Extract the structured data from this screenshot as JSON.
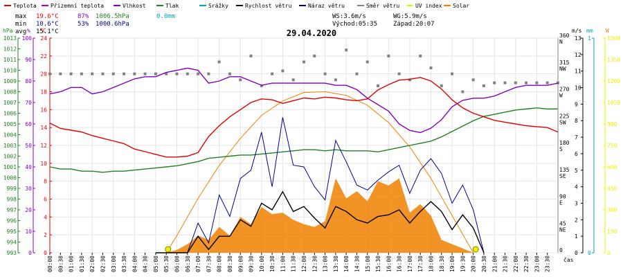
{
  "legend": [
    {
      "label": "Teplota",
      "color": "#e00000"
    },
    {
      "label": "Přízemní teplota",
      "color": "#b000b0"
    },
    {
      "label": "Vlhkost",
      "color": "#8000c0"
    },
    {
      "label": "Tlak",
      "color": "#208020"
    },
    {
      "label": "Srážky",
      "color": "#00a0c0"
    },
    {
      "label": "Rychlost větru",
      "color": "#000000"
    },
    {
      "label": "Náraz větru",
      "color": "#000090"
    },
    {
      "label": "Směr větru",
      "color": "#808080"
    },
    {
      "label": "UV index",
      "color": "#f0f000"
    },
    {
      "label": "Solar",
      "color": "#f08000"
    }
  ],
  "stats": {
    "max_label": "max",
    "max_temp": "19.6°C",
    "max_hum": "87%",
    "max_press": "1006.5hPa",
    "max_rain": "0.0mm",
    "min_label": "min",
    "min_temp": "10.6°C",
    "min_hum": "53%",
    "min_press": "1000.6hPa",
    "avg_label": "avg",
    "avg_temp": "15.1°C"
  },
  "wind_info": {
    "ws": "WS:3.6m/s",
    "wg": "WG:5.9m/s"
  },
  "sun_info": {
    "sunrise": "Východ:05:35",
    "sunset": "Západ:20:07"
  },
  "date_title": "29.04.2020",
  "axis_units": {
    "hpa": "hPa",
    "pct": "%",
    "degc": "°C",
    "ms": "m/s",
    "mm": "mm",
    "w": "W",
    "cas": "čas"
  },
  "colors": {
    "temp": "#e00000",
    "feel": "#b000b0",
    "hum": "#8000c0",
    "press": "#208020",
    "rain": "#00a0c0",
    "wind": "#000000",
    "gust": "#000090",
    "dir": "#808080",
    "uv": "#f0f000",
    "solar": "#f08000"
  },
  "chart_data": {
    "type": "line",
    "x_hours": [
      0,
      0.5,
      1,
      1.5,
      2,
      2.5,
      3,
      3.5,
      4,
      4.5,
      5,
      5.5,
      6,
      6.5,
      7,
      7.5,
      8,
      8.5,
      9,
      9.5,
      10,
      10.5,
      11,
      11.5,
      12,
      12.5,
      13,
      13.5,
      14,
      14.5,
      15,
      15.5,
      16,
      16.5,
      17,
      17.5,
      18,
      18.5,
      19,
      19.5,
      20,
      20.5,
      21,
      21.5,
      22,
      22.5,
      23,
      23.5,
      24
    ],
    "x_tick_labels": [
      "00:00",
      "00:30",
      "01:00",
      "01:30",
      "02:00",
      "02:30",
      "03:00",
      "03:30",
      "04:00",
      "04:30",
      "05:00",
      "05:30",
      "06:00",
      "06:30",
      "07:00",
      "07:30",
      "08:00",
      "08:30",
      "09:00",
      "09:30",
      "10:00",
      "10:30",
      "11:00",
      "11:30",
      "12:00",
      "12:30",
      "13:00",
      "13:30",
      "14:00",
      "14:30",
      "15:00",
      "15:30",
      "16:00",
      "16:30",
      "17:00",
      "17:30",
      "18:00",
      "18:30",
      "19:00",
      "19:30",
      "20:00",
      "20:30",
      "21:00",
      "21:30",
      "22:00",
      "22:30",
      "23:00",
      "23:30"
    ],
    "axes": {
      "pressure_hpa": {
        "min": 993,
        "max": 1013,
        "ticks": [
          993,
          994,
          995,
          996,
          997,
          998,
          999,
          1000,
          1001,
          1002,
          1003,
          1004,
          1005,
          1006,
          1007,
          1008,
          1009,
          1010,
          1011,
          1012,
          1013
        ]
      },
      "humidity_pct": {
        "min": 0,
        "max": 100,
        "ticks": [
          0,
          10,
          20,
          30,
          40,
          50,
          60,
          70,
          80,
          90,
          100
        ]
      },
      "temperature_c": {
        "min": 0,
        "max": 24,
        "ticks": [
          0,
          2,
          4,
          6,
          8,
          10,
          12,
          14,
          16,
          18,
          20,
          22,
          24
        ]
      },
      "wind_dir_deg": {
        "min": 0,
        "max": 360,
        "ticks": [
          {
            "v": 0,
            "t": "0"
          },
          {
            "v": 45,
            "t": "45",
            "c": "NE"
          },
          {
            "v": 90,
            "t": "90",
            "c": "E"
          },
          {
            "v": 135,
            "t": "135",
            "c": "SE"
          },
          {
            "v": 180,
            "t": "180",
            "c": "S"
          },
          {
            "v": 225,
            "t": "225",
            "c": "SW"
          },
          {
            "v": 270,
            "t": "270",
            "c": "W"
          },
          {
            "v": 315,
            "t": "315",
            "c": "NW"
          },
          {
            "v": 360,
            "t": "360",
            "c": "N"
          }
        ]
      },
      "wind_ms": {
        "min": 0,
        "max": 13,
        "ticks": [
          0,
          1,
          2,
          3,
          4,
          5,
          6,
          7,
          8,
          9,
          10,
          11,
          12,
          13
        ]
      },
      "rain_mm": {
        "min": 0,
        "max": 1,
        "ticks": [
          0,
          1
        ]
      },
      "solar_w": {
        "min": 0,
        "max": 1500,
        "ticks": [
          0,
          150,
          300,
          450,
          600,
          750,
          900,
          1050,
          1200,
          1350,
          1500
        ]
      }
    },
    "series": [
      {
        "name": "Teplota",
        "key": "temp",
        "axis": "temperature_c",
        "x": [
          0,
          0.5,
          1,
          1.5,
          2,
          2.5,
          3,
          3.5,
          4,
          4.5,
          5,
          5.5,
          6,
          6.5,
          7,
          7.5,
          8,
          8.5,
          9,
          9.5,
          10,
          10.5,
          11,
          11.5,
          12,
          12.5,
          13,
          13.5,
          14,
          14.5,
          15,
          15.5,
          16,
          16.5,
          17,
          17.5,
          18,
          18.5,
          19,
          19.5,
          20,
          20.5,
          21,
          21.5,
          22,
          22.5,
          23,
          23.5,
          24
        ],
        "y": [
          14.5,
          13.9,
          13.7,
          13.5,
          13.1,
          12.8,
          12.5,
          12.2,
          11.6,
          11.3,
          11.0,
          10.7,
          10.7,
          10.8,
          11.2,
          13.0,
          14.2,
          15.2,
          16.0,
          16.8,
          17.2,
          17.1,
          16.7,
          17.0,
          17.3,
          17.2,
          17.4,
          17.3,
          17.1,
          17.0,
          17.2,
          18.2,
          18.8,
          19.3,
          19.4,
          19.6,
          19.2,
          18.3,
          17.1,
          16.2,
          15.6,
          15.2,
          14.8,
          14.6,
          14.4,
          14.2,
          14.1,
          14.0,
          13.5
        ]
      },
      {
        "name": "Vlhkost",
        "key": "hum",
        "axis": "humidity_pct",
        "x": [
          0,
          0.5,
          1,
          1.5,
          2,
          2.5,
          3,
          3.5,
          4,
          4.5,
          5,
          5.5,
          6,
          6.5,
          7,
          7.5,
          8,
          8.5,
          9,
          9.5,
          10,
          10.5,
          11,
          11.5,
          12,
          12.5,
          13,
          13.5,
          14,
          14.5,
          15,
          15.5,
          16,
          16.5,
          17,
          17.5,
          18,
          18.5,
          19,
          19.5,
          20,
          20.5,
          21,
          21.5,
          22,
          22.5,
          23,
          23.5,
          24
        ],
        "y": [
          74,
          75,
          77,
          77,
          74,
          75,
          77,
          79,
          81,
          82,
          82,
          84,
          85,
          86,
          85,
          79,
          80,
          82,
          82,
          80,
          78,
          79,
          79,
          79,
          79,
          79,
          79,
          78,
          78,
          76,
          72,
          69,
          66,
          60,
          57,
          56,
          58,
          62,
          68,
          71,
          72,
          72,
          73,
          75,
          77,
          78,
          78,
          78,
          79
        ]
      },
      {
        "name": "Tlak",
        "key": "press",
        "axis": "pressure_hpa",
        "x": [
          0,
          0.5,
          1,
          1.5,
          2,
          2.5,
          3,
          3.5,
          4,
          4.5,
          5,
          5.5,
          6,
          6.5,
          7,
          7.5,
          8,
          8.5,
          9,
          9.5,
          10,
          10.5,
          11,
          11.5,
          12,
          12.5,
          13,
          13.5,
          14,
          14.5,
          15,
          15.5,
          16,
          16.5,
          17,
          17.5,
          18,
          18.5,
          19,
          19.5,
          20,
          20.5,
          21,
          21.5,
          22,
          22.5,
          23,
          23.5,
          24
        ],
        "y": [
          1001.0,
          1000.8,
          1000.8,
          1000.6,
          1000.6,
          1000.5,
          1000.6,
          1000.6,
          1000.7,
          1000.8,
          1000.9,
          1001.0,
          1001.1,
          1001.3,
          1001.5,
          1001.8,
          1001.9,
          1002.0,
          1002.1,
          1002.1,
          1002.2,
          1002.3,
          1002.4,
          1002.5,
          1002.6,
          1002.6,
          1002.5,
          1002.6,
          1002.5,
          1002.5,
          1002.5,
          1002.4,
          1002.6,
          1002.8,
          1003.0,
          1003.2,
          1003.4,
          1003.8,
          1004.3,
          1004.8,
          1005.3,
          1005.7,
          1005.9,
          1006.1,
          1006.3,
          1006.4,
          1006.5,
          1006.4,
          1006.4
        ]
      },
      {
        "name": "Rychlost větru",
        "key": "wind",
        "axis": "wind_ms",
        "x": [
          5,
          6,
          6.5,
          7,
          7.5,
          8,
          8.5,
          9,
          9.5,
          10,
          10.5,
          11,
          11.5,
          12,
          12.5,
          13,
          13.5,
          14,
          14.5,
          15,
          15.5,
          16,
          16.5,
          17,
          17.5,
          18,
          18.5,
          19,
          19.5,
          20,
          20.5
        ],
        "y": [
          0,
          0,
          0,
          1.0,
          0.2,
          1.0,
          1.0,
          2.0,
          1.6,
          3.0,
          2.6,
          3.7,
          2.5,
          2.8,
          2.1,
          1.5,
          2.8,
          2.5,
          2.0,
          1.8,
          2.2,
          2.3,
          2.6,
          1.8,
          2.5,
          3.1,
          2.5,
          1.4,
          2.3,
          1.5,
          0
        ]
      },
      {
        "name": "Náraz větru",
        "key": "gust",
        "axis": "wind_ms",
        "x": [
          5,
          6,
          6.5,
          7,
          7.5,
          8,
          8.5,
          9,
          9.5,
          10,
          10.5,
          11,
          11.5,
          12,
          12.5,
          13,
          13.5,
          14,
          14.5,
          15,
          15.5,
          16,
          16.5,
          17,
          17.5,
          18,
          18.5,
          19,
          19.5,
          20,
          20.5
        ],
        "y": [
          0,
          0,
          0,
          1.8,
          0.6,
          3.5,
          2.2,
          4.5,
          5.0,
          7.3,
          4.0,
          8.2,
          5.3,
          5.2,
          4.0,
          3.2,
          6.8,
          5.5,
          4.1,
          3.8,
          4.4,
          4.9,
          5.3,
          3.6,
          5.0,
          5.7,
          4.8,
          3.0,
          4.1,
          2.6,
          0
        ]
      },
      {
        "name": "Směr větru",
        "key": "dir",
        "axis": "wind_dir_deg",
        "mode": "points",
        "x": [
          0,
          0.5,
          1,
          1.5,
          2,
          2.5,
          3,
          3.5,
          4,
          4.5,
          5,
          5.5,
          6,
          6.5,
          7,
          7.5,
          8,
          8.5,
          9,
          9.5,
          10,
          10.5,
          11,
          11.5,
          12,
          12.5,
          13,
          13.5,
          14,
          14.5,
          15,
          15.5,
          16,
          16.5,
          17,
          17.5,
          18,
          18.5,
          19,
          19.5,
          20,
          20.5,
          21,
          21.5,
          22,
          22.5,
          23,
          23.5,
          24
        ],
        "y": [
          300,
          300,
          300,
          300,
          300,
          300,
          300,
          300,
          300,
          300,
          300,
          300,
          300,
          300,
          300,
          300,
          320,
          300,
          290,
          330,
          280,
          300,
          305,
          290,
          320,
          330,
          300,
          290,
          340,
          300,
          320,
          280,
          330,
          300,
          290,
          330,
          310,
          280,
          300,
          270,
          290,
          280,
          285,
          285,
          285,
          285,
          285,
          285,
          285
        ]
      },
      {
        "name": "Solar",
        "key": "solar",
        "axis": "solar_w",
        "mode": "area",
        "x": [
          5.5,
          6,
          6.5,
          7,
          7.5,
          8,
          8.5,
          9,
          9.5,
          10,
          10.5,
          11,
          11.5,
          12,
          12.5,
          13,
          13.5,
          14,
          14.5,
          15,
          15.5,
          16,
          16.5,
          17,
          17.5,
          18,
          18.5,
          19,
          19.5,
          20
        ],
        "y": [
          0,
          20,
          60,
          120,
          90,
          180,
          120,
          250,
          200,
          320,
          270,
          280,
          230,
          200,
          180,
          220,
          520,
          380,
          430,
          360,
          500,
          470,
          520,
          280,
          340,
          260,
          90,
          60,
          30,
          0
        ]
      },
      {
        "name": "Solar",
        "key": "solar_theory",
        "axis": "solar_w",
        "mode": "line",
        "x": [
          5.5,
          6,
          7,
          8,
          9,
          10,
          11,
          12,
          13,
          14,
          15,
          16,
          17,
          18,
          19,
          20
        ],
        "y": [
          0,
          120,
          380,
          610,
          800,
          960,
          1060,
          1120,
          1125,
          1100,
          1030,
          910,
          740,
          520,
          260,
          0
        ]
      }
    ]
  }
}
